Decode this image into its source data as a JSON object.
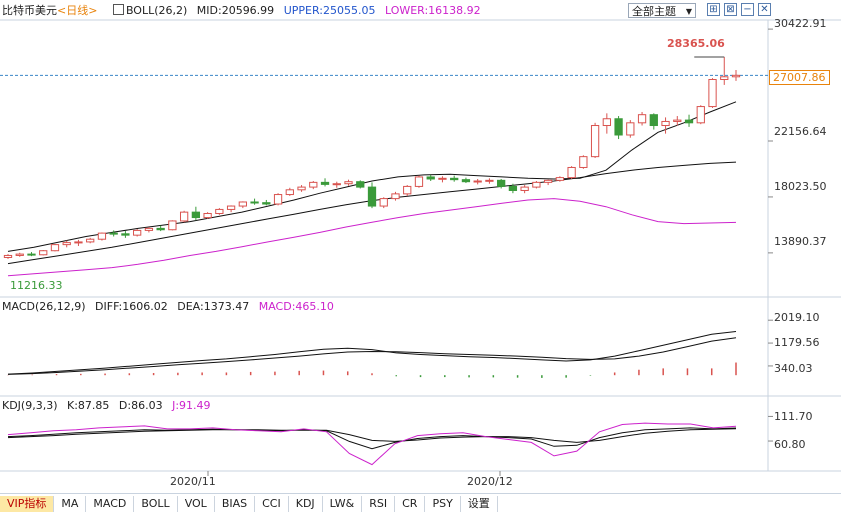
{
  "header": {
    "instrument": "比特币美元",
    "period": "<日线>",
    "boll_params": "BOLL(26,2)",
    "boll_mid": "MID:20596.99",
    "boll_upper": "UPPER:25055.05",
    "boll_lower": "LOWER:16138.92",
    "theme_button": "全部主题"
  },
  "macd_header": {
    "params": "MACD(26,12,9)",
    "diff": "DIFF:1606.02",
    "dea": "DEA:1373.47",
    "macd": "MACD:465.10"
  },
  "kdj_header": {
    "params": "KDJ(9,3,3)",
    "k": "K:87.85",
    "d": "D:86.03",
    "j": "J:91.49"
  },
  "price_axis": {
    "ticks": [
      "30422.91",
      "22156.64",
      "18023.50",
      "13890.37"
    ],
    "current_price": "27007.86",
    "high_label": "28365.06",
    "low_label": "11216.33"
  },
  "macd_axis": {
    "ticks": [
      "2019.10",
      "1179.56",
      "340.03"
    ]
  },
  "kdj_axis": {
    "ticks": [
      "111.70",
      "60.80"
    ]
  },
  "date_labels": [
    "2020/11",
    "2020/12"
  ],
  "tabs": [
    "VIP指标",
    "MA",
    "MACD",
    "BOLL",
    "VOL",
    "BIAS",
    "CCI",
    "KDJ",
    "LW&",
    "RSI",
    "CR",
    "PSY",
    "设置"
  ],
  "colors": {
    "up": "#d9534f",
    "down": "#3a9a3a",
    "upper_band": "#111111",
    "lower_band": "#cc22cc",
    "accent_orange": "#e8830c",
    "price_line": "#3a86c8"
  },
  "chart_data": [
    {
      "type": "candlestick",
      "series": [
        {
          "name": "比特币美元",
          "ohlc": [
            [
              13550,
              13800,
              13450,
              13700
            ],
            [
              13700,
              13900,
              13600,
              13800
            ],
            [
              13800,
              13950,
              13650,
              13750
            ],
            [
              13750,
              14100,
              13700,
              14050
            ],
            [
              14050,
              14550,
              14000,
              14500
            ],
            [
              14500,
              14800,
              14300,
              14650
            ],
            [
              14650,
              14850,
              14400,
              14700
            ],
            [
              14700,
              15000,
              14600,
              14900
            ],
            [
              14900,
              15400,
              14800,
              15350
            ],
            [
              15350,
              15550,
              15100,
              15300
            ],
            [
              15300,
              15500,
              15000,
              15200
            ],
            [
              15200,
              15650,
              15100,
              15550
            ],
            [
              15550,
              15800,
              15400,
              15700
            ],
            [
              15700,
              15900,
              15500,
              15600
            ],
            [
              15600,
              16300,
              15550,
              16250
            ],
            [
              16250,
              17000,
              16150,
              16900
            ],
            [
              16900,
              17300,
              16300,
              16500
            ],
            [
              16500,
              16900,
              16400,
              16800
            ],
            [
              16800,
              17200,
              16700,
              17100
            ],
            [
              17100,
              17400,
              16900,
              17350
            ],
            [
              17350,
              17700,
              17200,
              17650
            ],
            [
              17650,
              17900,
              17450,
              17600
            ],
            [
              17600,
              17800,
              17400,
              17500
            ],
            [
              17500,
              18300,
              17400,
              18200
            ],
            [
              18200,
              18700,
              18100,
              18550
            ],
            [
              18550,
              18900,
              18400,
              18750
            ],
            [
              18750,
              19200,
              18600,
              19100
            ],
            [
              19100,
              19400,
              18800,
              18950
            ],
            [
              18950,
              19150,
              18700,
              19000
            ],
            [
              19000,
              19300,
              18850,
              19150
            ],
            [
              19150,
              19250,
              18650,
              18750
            ],
            [
              18750,
              19100,
              17200,
              17350
            ],
            [
              17350,
              18000,
              17200,
              17900
            ],
            [
              17900,
              18400,
              17750,
              18250
            ],
            [
              18250,
              18900,
              18100,
              18800
            ],
            [
              18800,
              19600,
              18700,
              19500
            ],
            [
              19500,
              19650,
              19200,
              19350
            ],
            [
              19350,
              19550,
              19100,
              19400
            ],
            [
              19400,
              19600,
              19150,
              19300
            ],
            [
              19300,
              19450,
              19050,
              19150
            ],
            [
              19150,
              19350,
              18950,
              19200
            ],
            [
              19200,
              19400,
              19000,
              19250
            ],
            [
              19250,
              19350,
              18650,
              18800
            ],
            [
              18800,
              19000,
              18300,
              18500
            ],
            [
              18500,
              18900,
              18300,
              18750
            ],
            [
              18750,
              19200,
              18650,
              19100
            ],
            [
              19100,
              19300,
              18900,
              19250
            ],
            [
              19250,
              19550,
              19150,
              19450
            ],
            [
              19450,
              20300,
              19350,
              20200
            ],
            [
              20200,
              21100,
              20100,
              21000
            ],
            [
              21000,
              23500,
              20900,
              23300
            ],
            [
              23300,
              24200,
              22700,
              23800
            ],
            [
              23800,
              24000,
              22300,
              22600
            ],
            [
              22600,
              23700,
              22400,
              23500
            ],
            [
              23500,
              24300,
              23300,
              24100
            ],
            [
              24100,
              24200,
              23000,
              23300
            ],
            [
              23300,
              23900,
              22700,
              23600
            ],
            [
              23600,
              24000,
              23300,
              23700
            ],
            [
              23700,
              24100,
              23200,
              23500
            ],
            [
              23500,
              24800,
              23400,
              24700
            ],
            [
              24700,
              26800,
              24600,
              26700
            ],
            [
              26700,
              28365.06,
              26300,
              26900
            ],
            [
              26900,
              27400,
              26600,
              27007.86
            ]
          ]
        },
        {
          "name": "UPPER",
          "values": [
            14000,
            14300,
            14700,
            15100,
            15400,
            15700,
            15950,
            16200,
            16550,
            16900,
            17350,
            17800,
            18300,
            18750,
            19200,
            19500,
            19650,
            19700,
            19600,
            19500,
            19400,
            19350,
            19400,
            20000,
            21500,
            22800,
            23500,
            24300,
            25055.05
          ]
        },
        {
          "name": "MID",
          "values": [
            13100,
            13400,
            13700,
            14000,
            14300,
            14650,
            15000,
            15350,
            15700,
            16050,
            16400,
            16750,
            17100,
            17450,
            17750,
            18000,
            18200,
            18400,
            18600,
            18800,
            19000,
            19200,
            19450,
            19750,
            20000,
            20200,
            20350,
            20500,
            20596.99
          ]
        },
        {
          "name": "LOWER",
          "values": [
            12200,
            12350,
            12500,
            12650,
            12800,
            13050,
            13350,
            13700,
            14000,
            14350,
            14700,
            15050,
            15400,
            15800,
            16150,
            16500,
            16800,
            17050,
            17300,
            17550,
            17800,
            17900,
            17700,
            17300,
            16700,
            16200,
            16050,
            16100,
            16138.92
          ]
        }
      ],
      "yticks": [
        30422.91,
        22156.64,
        18023.5,
        13890.37
      ],
      "ylim": [
        11000,
        30800
      ],
      "high": 28365.06,
      "low": 11216.33,
      "last": 27007.86,
      "x_date_labels": [
        "2020/11",
        "2020/12"
      ]
    },
    {
      "type": "line+bar",
      "title": "MACD(26,12,9)",
      "series": [
        {
          "name": "DIFF",
          "values": [
            40,
            80,
            140,
            200,
            260,
            330,
            400,
            470,
            540,
            600,
            680,
            760,
            860,
            950,
            990,
            940,
            820,
            760,
            720,
            680,
            650,
            610,
            560,
            520,
            560,
            700,
            900,
            1100,
            1300,
            1500,
            1606.02
          ]
        },
        {
          "name": "DEA",
          "values": [
            30,
            60,
            100,
            150,
            200,
            260,
            320,
            380,
            440,
            500,
            560,
            630,
            700,
            780,
            850,
            870,
            860,
            830,
            790,
            760,
            730,
            700,
            660,
            610,
            580,
            600,
            700,
            850,
            1050,
            1250,
            1373.47
          ]
        },
        {
          "name": "MACD",
          "values": [
            10,
            20,
            40,
            50,
            60,
            70,
            80,
            90,
            100,
            100,
            120,
            130,
            160,
            170,
            140,
            70,
            -40,
            -70,
            -70,
            -80,
            -80,
            -90,
            -100,
            -90,
            -20,
            100,
            200,
            250,
            250,
            250,
            465.1
          ]
        }
      ],
      "yticks": [
        2019.1,
        1179.56,
        340.03
      ]
    },
    {
      "type": "line",
      "title": "KDJ(9,3,3)",
      "series": [
        {
          "name": "K",
          "values": [
            70,
            72,
            75,
            78,
            80,
            82,
            84,
            83,
            84,
            85,
            84,
            83,
            82,
            84,
            82,
            60,
            45,
            58,
            66,
            70,
            72,
            70,
            68,
            65,
            50,
            52,
            68,
            78,
            84,
            86,
            88,
            86,
            87.85
          ]
        },
        {
          "name": "D",
          "values": [
            68,
            70,
            72,
            75,
            77,
            79,
            81,
            82,
            83,
            84,
            84,
            84,
            83,
            83,
            83,
            74,
            62,
            60,
            63,
            67,
            69,
            70,
            70,
            68,
            62,
            58,
            62,
            70,
            77,
            81,
            84,
            85,
            86.03
          ]
        },
        {
          "name": "J",
          "values": [
            74,
            78,
            82,
            84,
            88,
            90,
            92,
            86,
            86,
            88,
            84,
            82,
            80,
            86,
            80,
            35,
            12,
            55,
            72,
            76,
            78,
            70,
            64,
            58,
            30,
            40,
            80,
            95,
            98,
            96,
            96,
            88,
            91.49
          ]
        }
      ],
      "yticks": [
        111.7,
        60.8
      ]
    }
  ]
}
